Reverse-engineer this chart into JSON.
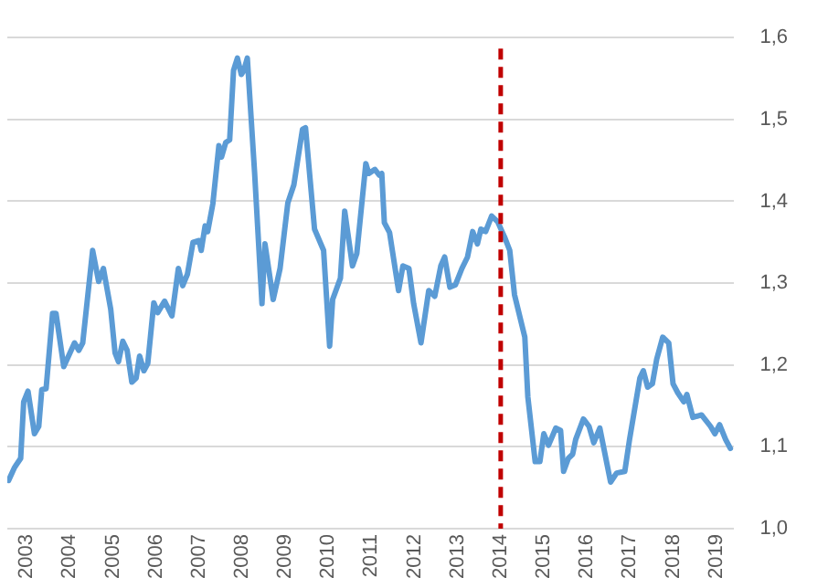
{
  "chart_data": {
    "type": "line",
    "xlim": [
      2002.55,
      2019.42
    ],
    "xticks": [
      2003,
      2004,
      2005,
      2006,
      2007,
      2008,
      2009,
      2010,
      2011,
      2012,
      2013,
      2014,
      2015,
      2016,
      2017,
      2018,
      2019
    ],
    "ylim": [
      1.0,
      1.6
    ],
    "yticks": [
      {
        "value": 1.0,
        "label": "1,0"
      },
      {
        "value": 1.1,
        "label": "1,1"
      },
      {
        "value": 1.2,
        "label": "1,2"
      },
      {
        "value": 1.3,
        "label": "1,3"
      },
      {
        "value": 1.4,
        "label": "1,4"
      },
      {
        "value": 1.5,
        "label": "1,5"
      },
      {
        "value": 1.6,
        "label": "1,6"
      }
    ],
    "grid": "y",
    "legend": false,
    "marker": "none",
    "line_style": "solid",
    "ref_lines": [
      {
        "axis": "x",
        "value": 2014,
        "color": "#c00000",
        "line_style": "dashed"
      }
    ],
    "series": [
      {
        "color": "#5b9bd5",
        "x": [
          2002.58,
          2002.72,
          2002.86,
          2002.93,
          2003.03,
          2003.18,
          2003.28,
          2003.35,
          2003.45,
          2003.6,
          2003.68,
          2003.86,
          2004.11,
          2004.21,
          2004.3,
          2004.53,
          2004.67,
          2004.78,
          2004.95,
          2005.05,
          2005.13,
          2005.23,
          2005.33,
          2005.44,
          2005.54,
          2005.62,
          2005.72,
          2005.81,
          2005.95,
          2006.04,
          2006.2,
          2006.37,
          2006.52,
          2006.62,
          2006.73,
          2006.86,
          2007.0,
          2007.05,
          2007.14,
          2007.2,
          2007.32,
          2007.46,
          2007.52,
          2007.62,
          2007.71,
          2007.8,
          2007.89,
          2007.98,
          2008.04,
          2008.12,
          2008.29,
          2008.46,
          2008.53,
          2008.72,
          2008.88,
          2009.06,
          2009.2,
          2009.4,
          2009.47,
          2009.68,
          2009.89,
          2010.03,
          2010.1,
          2010.28,
          2010.38,
          2010.56,
          2010.66,
          2010.87,
          2010.94,
          2011.08,
          2011.18,
          2011.24,
          2011.3,
          2011.42,
          2011.63,
          2011.73,
          2011.87,
          2011.98,
          2012.15,
          2012.33,
          2012.47,
          2012.61,
          2012.7,
          2012.82,
          2012.95,
          2013.1,
          2013.23,
          2013.35,
          2013.46,
          2013.54,
          2013.65,
          2013.79,
          2013.93,
          2014.1,
          2014.21,
          2014.32,
          2014.56,
          2014.63,
          2014.8,
          2014.91,
          2015.0,
          2015.11,
          2015.28,
          2015.39,
          2015.46,
          2015.57,
          2015.67,
          2015.74,
          2015.92,
          2016.05,
          2016.16,
          2016.3,
          2016.55,
          2016.69,
          2016.88,
          2016.99,
          2017.23,
          2017.31,
          2017.41,
          2017.52,
          2017.62,
          2017.76,
          2017.9,
          2018.0,
          2018.11,
          2018.25,
          2018.32,
          2018.46,
          2018.66,
          2018.87,
          2018.97,
          2019.08,
          2019.22,
          2019.33
        ],
        "values": [
          1.059,
          1.075,
          1.086,
          1.155,
          1.168,
          1.116,
          1.125,
          1.17,
          1.171,
          1.263,
          1.263,
          1.198,
          1.227,
          1.218,
          1.227,
          1.34,
          1.302,
          1.318,
          1.268,
          1.215,
          1.204,
          1.229,
          1.218,
          1.179,
          1.184,
          1.211,
          1.193,
          1.202,
          1.276,
          1.264,
          1.278,
          1.26,
          1.318,
          1.297,
          1.311,
          1.35,
          1.352,
          1.34,
          1.37,
          1.363,
          1.397,
          1.468,
          1.454,
          1.472,
          1.475,
          1.56,
          1.575,
          1.555,
          1.56,
          1.575,
          1.434,
          1.275,
          1.348,
          1.28,
          1.318,
          1.398,
          1.42,
          1.488,
          1.49,
          1.366,
          1.34,
          1.223,
          1.28,
          1.306,
          1.388,
          1.321,
          1.336,
          1.446,
          1.434,
          1.439,
          1.432,
          1.434,
          1.374,
          1.362,
          1.291,
          1.321,
          1.318,
          1.275,
          1.227,
          1.291,
          1.284,
          1.321,
          1.332,
          1.295,
          1.298,
          1.318,
          1.332,
          1.363,
          1.348,
          1.366,
          1.363,
          1.382,
          1.375,
          1.355,
          1.34,
          1.286,
          1.234,
          1.161,
          1.082,
          1.082,
          1.116,
          1.102,
          1.123,
          1.12,
          1.07,
          1.086,
          1.091,
          1.109,
          1.134,
          1.125,
          1.105,
          1.123,
          1.057,
          1.068,
          1.07,
          1.109,
          1.184,
          1.193,
          1.173,
          1.177,
          1.207,
          1.234,
          1.227,
          1.177,
          1.166,
          1.155,
          1.164,
          1.136,
          1.139,
          1.125,
          1.116,
          1.127,
          1.109,
          1.098
        ]
      }
    ]
  }
}
